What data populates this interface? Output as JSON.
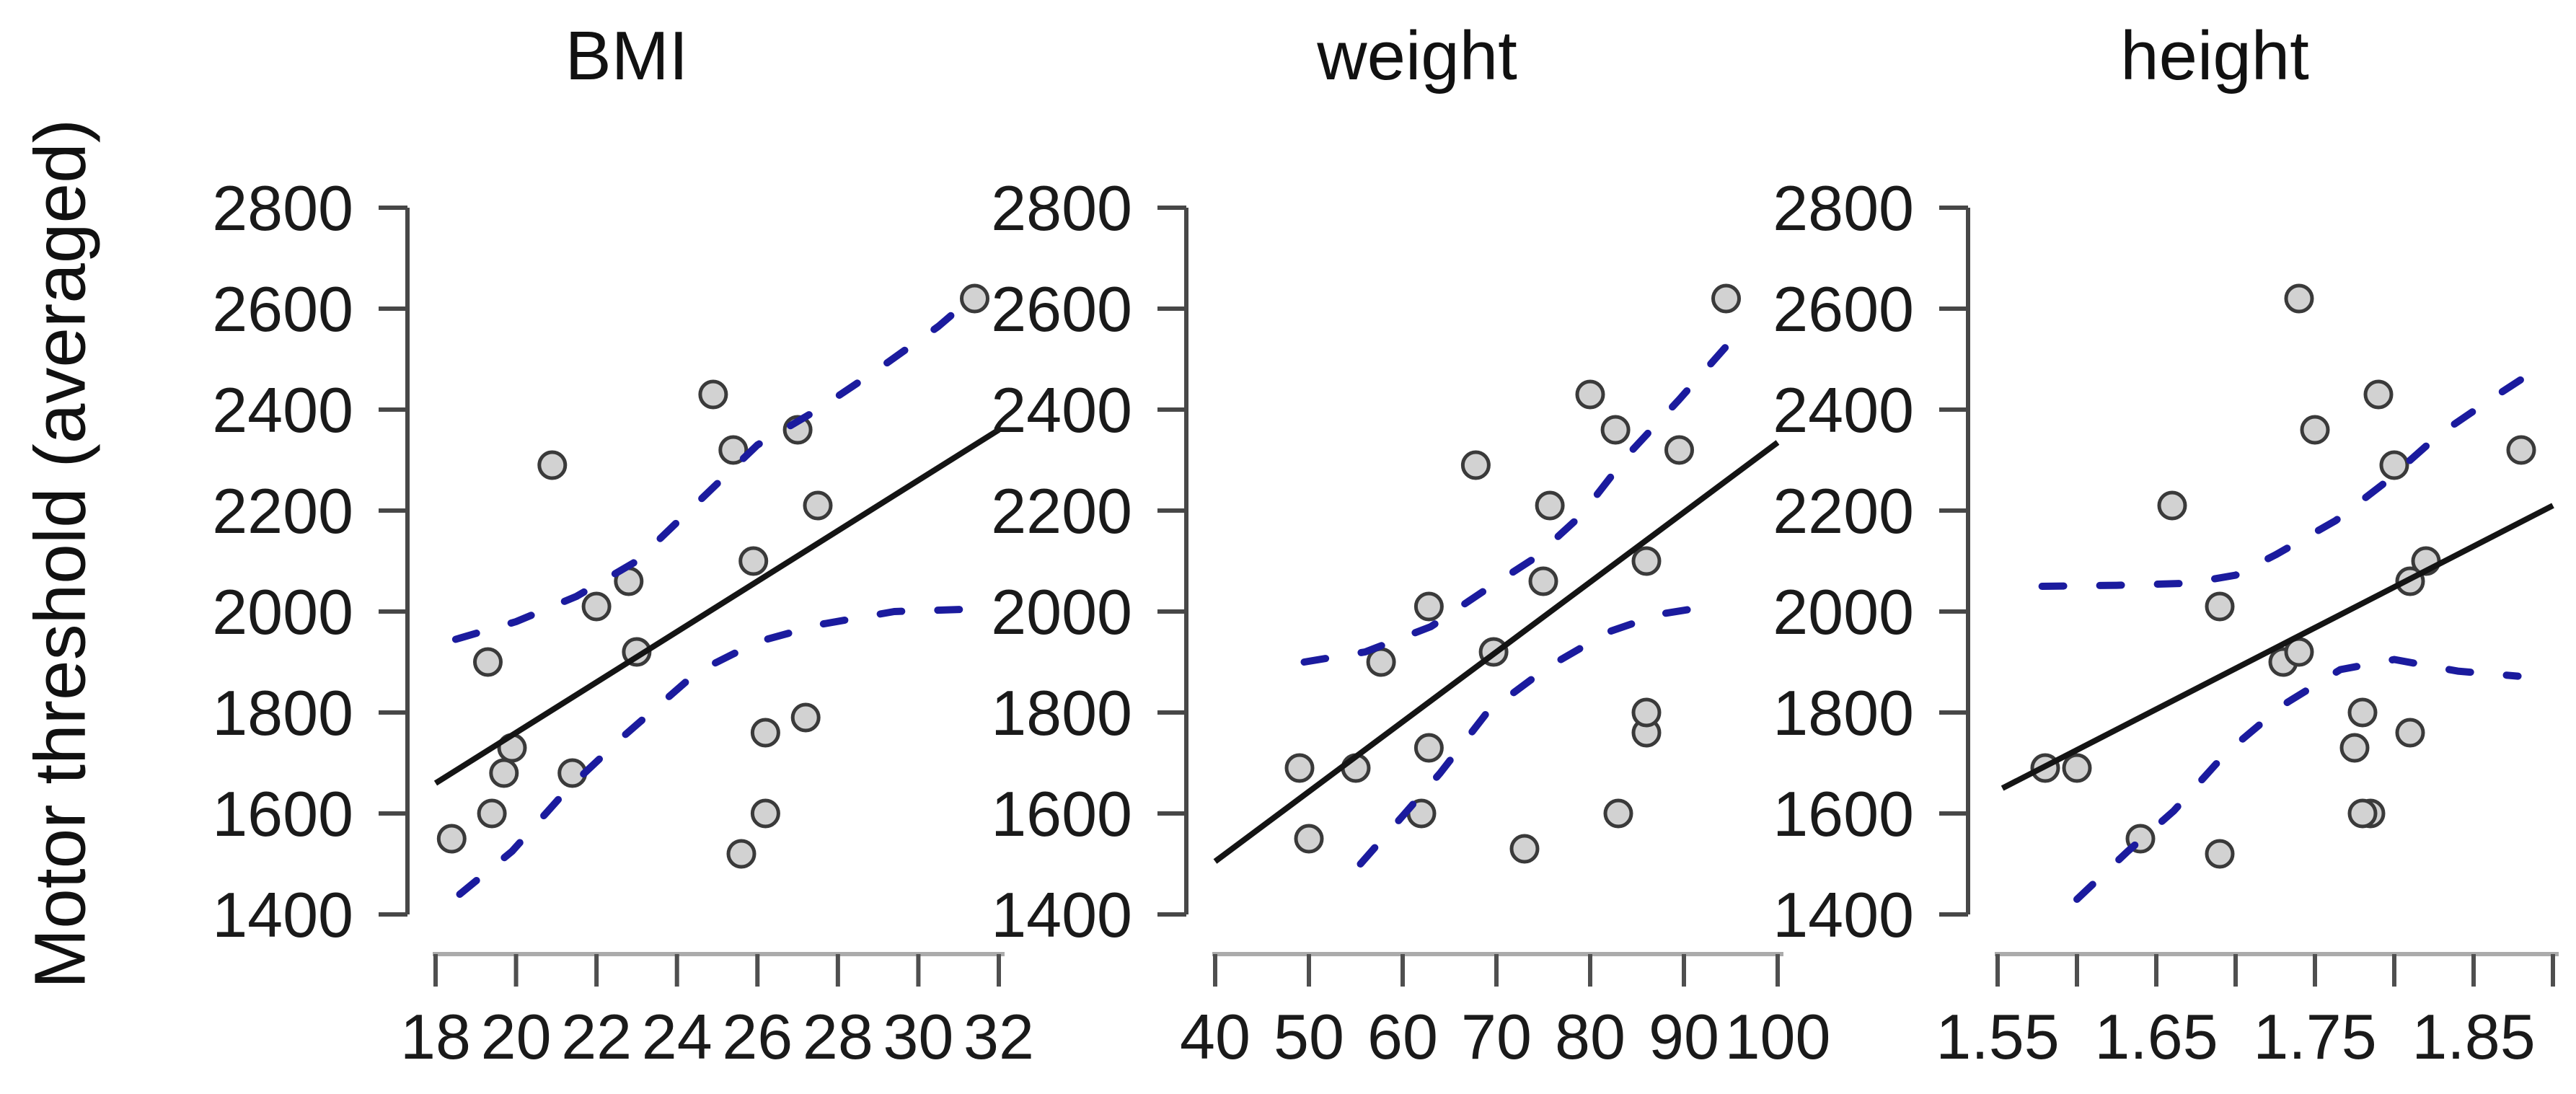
{
  "labels": {
    "y_axis_title": "Motor threshold (averaged)"
  },
  "style": {
    "background": "#ffffff",
    "point_fill": "#d2d2d2",
    "point_stroke": "#3a3a3a",
    "fit_color": "#141414",
    "band_color": "#1b1b9e",
    "y_axis_color": "#474747",
    "x_axis_line_color": "#ababab",
    "tick_color": "#4f4f4f",
    "text_color": "#1a1a1a"
  },
  "chart_data": [
    {
      "type": "scatter",
      "title": "BMI",
      "xlabel": "",
      "ylabel": "Motor threshold (averaged)",
      "x_domain": [
        18,
        32
      ],
      "y_domain": [
        1400,
        2800
      ],
      "grid": false,
      "y_ticks": [
        2800,
        2600,
        2400,
        2200,
        2000,
        1800,
        1600,
        1400
      ],
      "x_ticks": [
        {
          "v": 18,
          "label": "18"
        },
        {
          "v": 20,
          "label": "20"
        },
        {
          "v": 22,
          "label": "22"
        },
        {
          "v": 24,
          "label": "24"
        },
        {
          "v": 26,
          "label": "26"
        },
        {
          "v": 28,
          "label": "28"
        },
        {
          "v": 30,
          "label": "30"
        },
        {
          "v": 32,
          "label": "32"
        }
      ],
      "points": [
        [
          18.4,
          1550
        ],
        [
          19.3,
          1900
        ],
        [
          19.4,
          1600
        ],
        [
          19.7,
          1680
        ],
        [
          19.9,
          1730
        ],
        [
          20.9,
          2290
        ],
        [
          21.4,
          1680
        ],
        [
          22.0,
          2010
        ],
        [
          22.8,
          2060
        ],
        [
          23.0,
          1920
        ],
        [
          24.9,
          2430
        ],
        [
          25.4,
          2320
        ],
        [
          25.6,
          1520
        ],
        [
          25.9,
          2100
        ],
        [
          26.2,
          1600
        ],
        [
          26.2,
          1760
        ],
        [
          27.0,
          2360
        ],
        [
          27.2,
          1790
        ],
        [
          27.5,
          2210
        ],
        [
          31.4,
          2620
        ]
      ],
      "fit_line": {
        "x": [
          18.0,
          32.0
        ],
        "y": [
          1660,
          2360
        ]
      },
      "band_upper": [
        [
          18.5,
          1945
        ],
        [
          20.0,
          1980
        ],
        [
          21.5,
          2030
        ],
        [
          23.0,
          2100
        ],
        [
          24.5,
          2215
        ],
        [
          26.0,
          2330
        ],
        [
          27.5,
          2400
        ],
        [
          29.0,
          2480
        ],
        [
          30.5,
          2565
        ],
        [
          31.45,
          2630
        ]
      ],
      "band_lower": [
        [
          18.6,
          1440
        ],
        [
          19.9,
          1525
        ],
        [
          21.3,
          1650
        ],
        [
          22.7,
          1755
        ],
        [
          24.5,
          1880
        ],
        [
          26.0,
          1940
        ],
        [
          27.6,
          1975
        ],
        [
          29.4,
          2000
        ],
        [
          31.4,
          2005
        ]
      ]
    },
    {
      "type": "scatter",
      "title": "weight",
      "xlabel": "",
      "ylabel": "Motor threshold (averaged)",
      "x_domain": [
        40,
        100
      ],
      "y_domain": [
        1400,
        2800
      ],
      "grid": false,
      "y_ticks": [
        2800,
        2600,
        2400,
        2200,
        2000,
        1800,
        1600,
        1400
      ],
      "x_ticks": [
        {
          "v": 40,
          "label": "40"
        },
        {
          "v": 50,
          "label": "50"
        },
        {
          "v": 60,
          "label": "60"
        },
        {
          "v": 70,
          "label": "70"
        },
        {
          "v": 80,
          "label": "80"
        },
        {
          "v": 90,
          "label": "90"
        },
        {
          "v": 100,
          "label": "100"
        }
      ],
      "points": [
        [
          50,
          1550
        ],
        [
          57.7,
          1900
        ],
        [
          62,
          1600
        ],
        [
          49,
          1690
        ],
        [
          62.8,
          1730
        ],
        [
          67.8,
          2290
        ],
        [
          55,
          1690
        ],
        [
          62.8,
          2010
        ],
        [
          75,
          2060
        ],
        [
          69.7,
          1920
        ],
        [
          80,
          2430
        ],
        [
          89.5,
          2320
        ],
        [
          73,
          1530
        ],
        [
          86,
          2100
        ],
        [
          83,
          1600
        ],
        [
          86,
          1760
        ],
        [
          82.7,
          2360
        ],
        [
          86,
          1800
        ],
        [
          75.7,
          2210
        ],
        [
          94.5,
          2620
        ]
      ],
      "fit_line": {
        "x": [
          40,
          100
        ],
        "y": [
          1505,
          2335
        ]
      },
      "band_upper": [
        [
          49.5,
          1900
        ],
        [
          56,
          1920
        ],
        [
          63,
          1970
        ],
        [
          69,
          2045
        ],
        [
          74,
          2105
        ],
        [
          79,
          2190
        ],
        [
          84,
          2310
        ],
        [
          89.5,
          2420
        ],
        [
          94.5,
          2525
        ]
      ],
      "band_lower": [
        [
          55.5,
          1500
        ],
        [
          60,
          1595
        ],
        [
          64,
          1680
        ],
        [
          69,
          1800
        ],
        [
          75.5,
          1890
        ],
        [
          82,
          1960
        ],
        [
          87.5,
          1995
        ],
        [
          92.5,
          2010
        ]
      ]
    },
    {
      "type": "scatter",
      "title": "height",
      "xlabel": "",
      "ylabel": "Motor threshold (averaged)",
      "x_domain": [
        1.55,
        1.9
      ],
      "y_domain": [
        1400,
        2800
      ],
      "grid": false,
      "y_ticks": [
        2800,
        2600,
        2400,
        2200,
        2000,
        1800,
        1600,
        1400
      ],
      "x_ticks": [
        {
          "v": 1.55,
          "label": "1.55"
        },
        {
          "v": 1.6,
          "label": ""
        },
        {
          "v": 1.65,
          "label": "1.65"
        },
        {
          "v": 1.7,
          "label": ""
        },
        {
          "v": 1.75,
          "label": "1.75"
        },
        {
          "v": 1.8,
          "label": ""
        },
        {
          "v": 1.85,
          "label": "1.85"
        },
        {
          "v": 1.9,
          "label": ""
        }
      ],
      "points": [
        [
          1.64,
          1550
        ],
        [
          1.73,
          1900
        ],
        [
          1.785,
          1600
        ],
        [
          1.58,
          1690
        ],
        [
          1.775,
          1730
        ],
        [
          1.8,
          2290
        ],
        [
          1.6,
          1690
        ],
        [
          1.69,
          2010
        ],
        [
          1.81,
          2060
        ],
        [
          1.74,
          1920
        ],
        [
          1.79,
          2430
        ],
        [
          1.88,
          2320
        ],
        [
          1.69,
          1520
        ],
        [
          1.82,
          2100
        ],
        [
          1.78,
          1600
        ],
        [
          1.81,
          1760
        ],
        [
          1.75,
          2360
        ],
        [
          1.78,
          1800
        ],
        [
          1.66,
          2210
        ],
        [
          1.74,
          2620
        ]
      ],
      "fit_line": {
        "x": [
          1.553,
          1.9
        ],
        "y": [
          1650,
          2210
        ]
      },
      "band_upper": [
        [
          1.578,
          2050
        ],
        [
          1.625,
          2052
        ],
        [
          1.67,
          2056
        ],
        [
          1.7,
          2072
        ],
        [
          1.725,
          2112
        ],
        [
          1.763,
          2180
        ],
        [
          1.794,
          2255
        ],
        [
          1.828,
          2350
        ],
        [
          1.863,
          2425
        ],
        [
          1.885,
          2470
        ]
      ],
      "band_lower": [
        [
          1.6,
          1430
        ],
        [
          1.632,
          1525
        ],
        [
          1.661,
          1605
        ],
        [
          1.694,
          1720
        ],
        [
          1.73,
          1815
        ],
        [
          1.766,
          1885
        ],
        [
          1.8,
          1905
        ],
        [
          1.84,
          1882
        ],
        [
          1.878,
          1872
        ]
      ]
    }
  ]
}
